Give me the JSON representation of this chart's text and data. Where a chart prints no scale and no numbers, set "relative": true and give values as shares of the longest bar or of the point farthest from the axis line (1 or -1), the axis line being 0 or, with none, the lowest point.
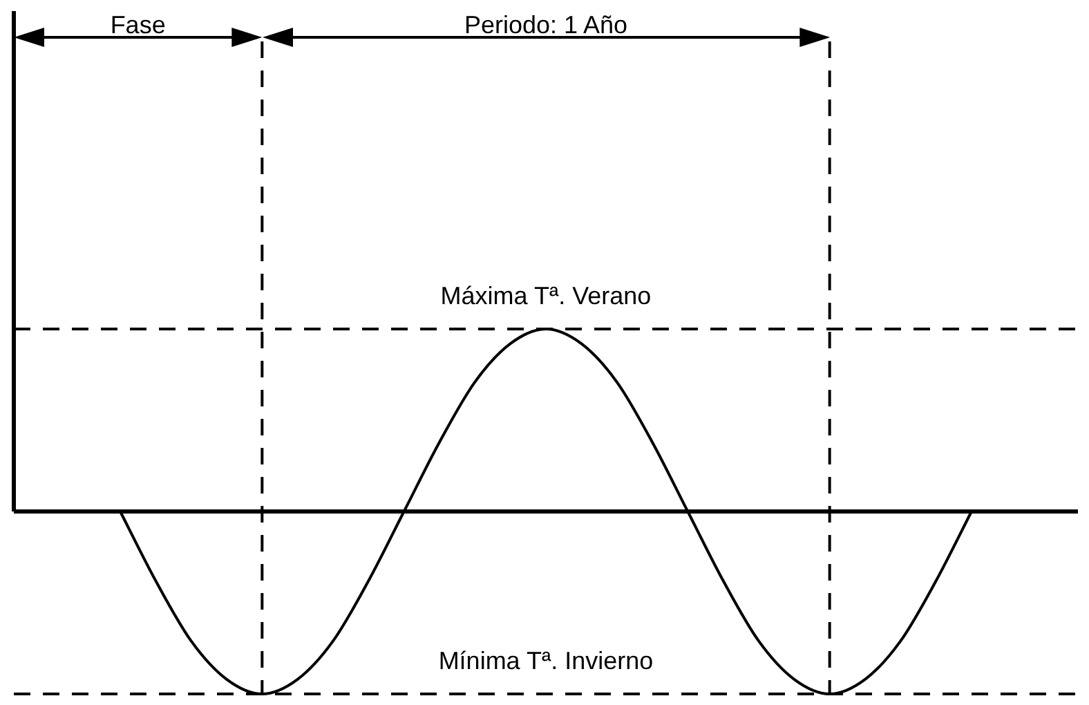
{
  "chart_data": {
    "type": "line",
    "relative": true,
    "categories": [
      null,
      null,
      null,
      null,
      null,
      null,
      null,
      null,
      null,
      null,
      null,
      null,
      null,
      null,
      null,
      null,
      null,
      null,
      null,
      null,
      null,
      null,
      null,
      null,
      null,
      null,
      null,
      null,
      null,
      null,
      null
    ],
    "series": [
      {
        "color": "#000000",
        "values": [
          null,
          null,
          null,
          0,
          -0.38,
          -0.71,
          -0.92,
          -1,
          -0.92,
          -0.71,
          -0.38,
          0,
          0.38,
          0.71,
          0.92,
          1,
          0.92,
          0.71,
          0.38,
          0,
          -0.38,
          -0.71,
          -0.92,
          -1,
          -0.92,
          -0.71,
          -0.38,
          0,
          null,
          null,
          null
        ]
      }
    ],
    "marker": "none",
    "line_style": "solid",
    "legend": false,
    "ref_lines": [
      {
        "axis": "y",
        "value": 1,
        "label": "Máxima Tª. Verano",
        "line_style": "dashed"
      },
      {
        "axis": "y",
        "value": -1,
        "label": "Mínima Tª. Invierno",
        "line_style": "dashed"
      }
    ],
    "annotations": [
      "Fase",
      "Periodo: 1 Año"
    ]
  }
}
